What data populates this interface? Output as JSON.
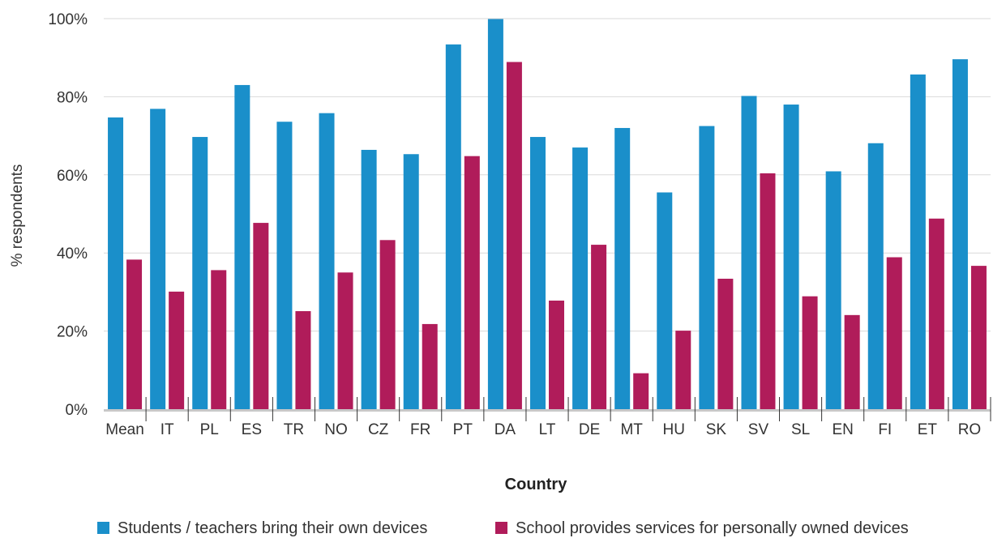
{
  "chart_data": {
    "type": "bar",
    "xlabel": "Country",
    "ylabel": "% respondents",
    "ylim": [
      0,
      100
    ],
    "yticks": [
      "0%",
      "20%",
      "40%",
      "60%",
      "80%",
      "100%"
    ],
    "ytick_values": [
      0,
      20,
      40,
      60,
      80,
      100
    ],
    "grid": true,
    "legend_position": "bottom",
    "categories": [
      "Mean",
      "IT",
      "PL",
      "ES",
      "TR",
      "NO",
      "CZ",
      "FR",
      "PT",
      "DA",
      "LT",
      "DE",
      "MT",
      "HU",
      "SK",
      "SV",
      "SL",
      "EN",
      "FI",
      "ET",
      "RO"
    ],
    "series": [
      {
        "name": "Students / teachers bring their own devices",
        "color": "#1a8fca",
        "values": [
          74.7,
          76.9,
          69.7,
          83.0,
          73.6,
          75.8,
          66.4,
          65.3,
          93.4,
          99.9,
          69.7,
          67.0,
          72.0,
          55.5,
          72.5,
          80.2,
          78.0,
          60.9,
          68.1,
          85.7,
          89.6
        ]
      },
      {
        "name": "School provides services for personally owned devices",
        "color": "#b01c5a",
        "values": [
          38.3,
          30.1,
          35.6,
          47.7,
          25.1,
          35.0,
          43.3,
          21.8,
          64.8,
          88.9,
          27.8,
          42.1,
          9.2,
          20.1,
          33.4,
          60.4,
          28.9,
          24.1,
          38.9,
          48.8,
          36.7
        ]
      }
    ]
  }
}
